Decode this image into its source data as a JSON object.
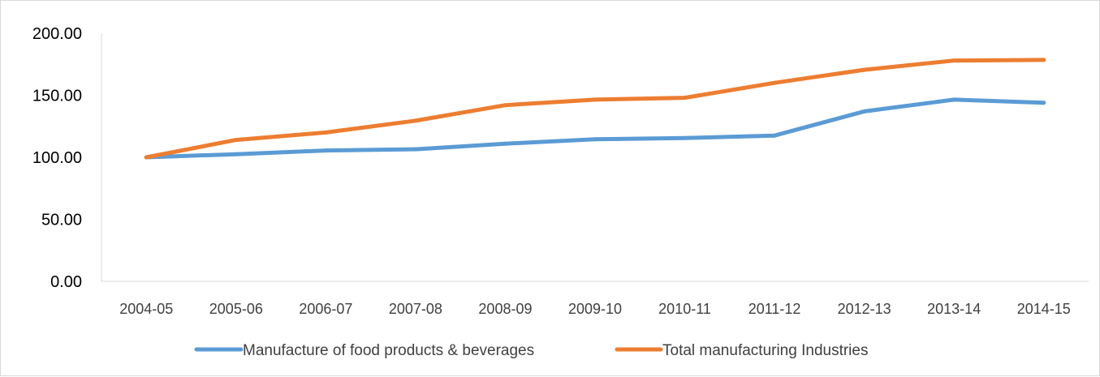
{
  "chart_data": {
    "type": "line",
    "title": "",
    "xlabel": "",
    "ylabel": "",
    "categories": [
      "2004-05",
      "2005-06",
      "2006-07",
      "2007-08",
      "2008-09",
      "2009-10",
      "2010-11",
      "2011-12",
      "2012-13",
      "2013-14",
      "2014-15"
    ],
    "yticks": [
      "0.00",
      "50.00",
      "100.00",
      "150.00",
      "200.00"
    ],
    "ylim": [
      0,
      200
    ],
    "grid": false,
    "legend_position": "bottom",
    "series": [
      {
        "name": "Manufacture of food products & beverages",
        "color": "#5b9bd5",
        "values": [
          100,
          102.5,
          105.5,
          106.5,
          111,
          114.5,
          115.5,
          117.5,
          137,
          146.5,
          144
        ]
      },
      {
        "name": "Total manufacturing Industries",
        "color": "#ed7d31",
        "values": [
          100,
          114,
          120,
          129.5,
          142,
          146.5,
          148,
          160,
          170.5,
          178,
          178.5
        ]
      }
    ]
  }
}
